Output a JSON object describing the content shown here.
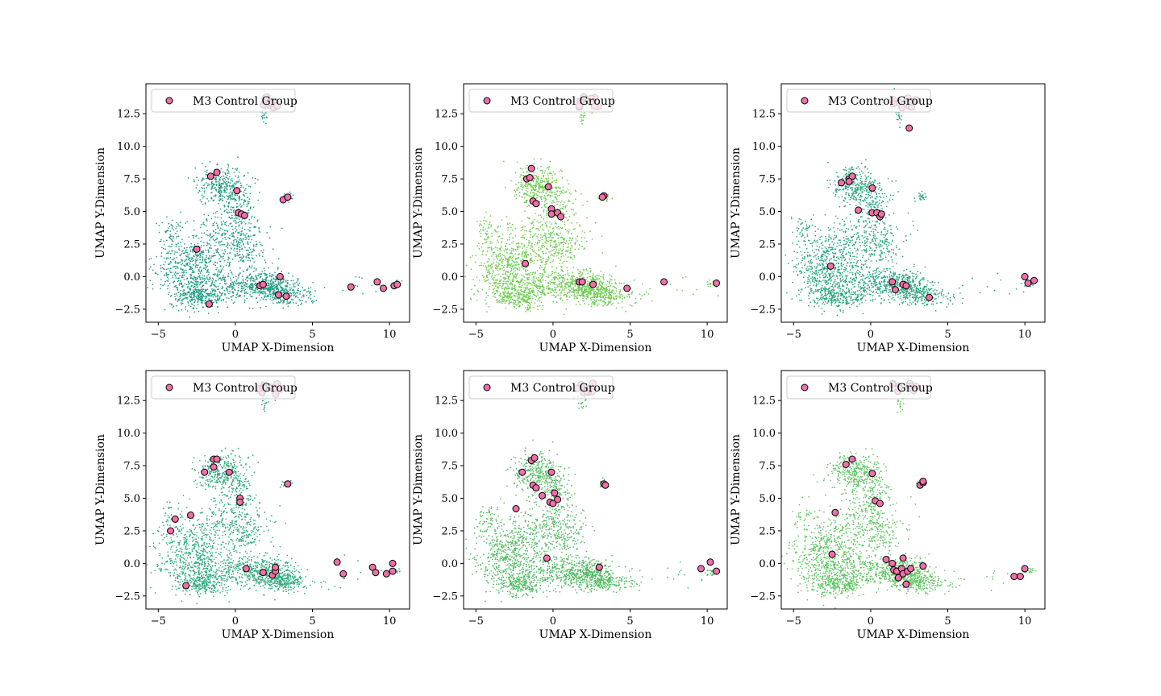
{
  "figure": {
    "colors": {
      "marker": "#f06fa8",
      "marker_edge": "#000000",
      "frame": "#000000",
      "legend_edge": "#cccccc"
    }
  },
  "chart_data": [
    {
      "type": "scatter",
      "xlabel": "UMAP X-Dimension",
      "ylabel": "UMAP Y-Dimension",
      "xlim": [
        -5.8,
        11.3
      ],
      "ylim": [
        -3.5,
        14.8
      ],
      "xticks": [
        -5,
        0,
        5,
        10
      ],
      "xtick_labels": [
        "−5",
        "0",
        "5",
        "10"
      ],
      "yticks": [
        -2.5,
        0.0,
        2.5,
        5.0,
        7.5,
        10.0,
        12.5
      ],
      "ytick_labels": [
        "−2.5",
        "0.0",
        "2.5",
        "5.0",
        "7.5",
        "10.0",
        "12.5"
      ],
      "legend": {
        "label": "M3 Control Group",
        "placement": "upper-left"
      },
      "background_color": "#1e9c83",
      "series": [
        {
          "name": "M3 Control Group",
          "color": "#f06fa8",
          "points": [
            [
              -1.6,
              7.7
            ],
            [
              -1.2,
              8.0
            ],
            [
              0.1,
              6.6
            ],
            [
              0.2,
              4.9
            ],
            [
              0.4,
              4.8
            ],
            [
              0.6,
              4.7
            ],
            [
              3.1,
              5.9
            ],
            [
              3.4,
              6.1
            ],
            [
              -2.5,
              2.1
            ],
            [
              -1.7,
              -2.1
            ],
            [
              1.6,
              -0.7
            ],
            [
              1.8,
              -0.6
            ],
            [
              2.9,
              0.0
            ],
            [
              2.8,
              -1.4
            ],
            [
              3.3,
              -1.5
            ],
            [
              7.5,
              -0.8
            ],
            [
              9.2,
              -0.4
            ],
            [
              9.6,
              -0.9
            ],
            [
              10.3,
              -0.7
            ],
            [
              10.5,
              -0.6
            ]
          ]
        }
      ]
    },
    {
      "type": "scatter",
      "xlabel": "UMAP X-Dimension",
      "ylabel": "UMAP Y-Dimension",
      "xlim": [
        -5.8,
        11.3
      ],
      "ylim": [
        -3.5,
        14.8
      ],
      "xticks": [
        -5,
        0,
        5,
        10
      ],
      "xtick_labels": [
        "−5",
        "0",
        "5",
        "10"
      ],
      "yticks": [
        -2.5,
        0.0,
        2.5,
        5.0,
        7.5,
        10.0,
        12.5
      ],
      "ytick_labels": [
        "−2.5",
        "0.0",
        "2.5",
        "5.0",
        "7.5",
        "10.0",
        "12.5"
      ],
      "legend": {
        "label": "M3 Control Group",
        "placement": "upper-left"
      },
      "background_color": "#6ccc4e",
      "series": [
        {
          "name": "M3 Control Group",
          "color": "#f06fa8",
          "points": [
            [
              -1.7,
              7.5
            ],
            [
              -1.5,
              7.6
            ],
            [
              -1.4,
              8.3
            ],
            [
              -0.3,
              6.9
            ],
            [
              -1.3,
              5.8
            ],
            [
              -1.1,
              5.6
            ],
            [
              -0.1,
              5.2
            ],
            [
              -0.1,
              4.8
            ],
            [
              0.3,
              4.9
            ],
            [
              0.5,
              4.6
            ],
            [
              3.3,
              6.2
            ],
            [
              3.2,
              6.1
            ],
            [
              -1.8,
              1.0
            ],
            [
              1.7,
              -0.4
            ],
            [
              1.9,
              -0.4
            ],
            [
              2.6,
              -0.6
            ],
            [
              4.8,
              -0.9
            ],
            [
              7.2,
              -0.4
            ],
            [
              10.6,
              -0.5
            ]
          ]
        }
      ]
    },
    {
      "type": "scatter",
      "xlabel": "UMAP X-Dimension",
      "ylabel": "UMAP Y-Dimension",
      "xlim": [
        -5.8,
        11.3
      ],
      "ylim": [
        -3.5,
        14.8
      ],
      "xticks": [
        -5,
        0,
        5,
        10
      ],
      "xtick_labels": [
        "−5",
        "0",
        "5",
        "10"
      ],
      "yticks": [
        -2.5,
        0.0,
        2.5,
        5.0,
        7.5,
        10.0,
        12.5
      ],
      "ytick_labels": [
        "−2.5",
        "0.0",
        "2.5",
        "5.0",
        "7.5",
        "10.0",
        "12.5"
      ],
      "legend": {
        "label": "M3 Control Group",
        "placement": "upper-left"
      },
      "background_color": "#27a47e",
      "series": [
        {
          "name": "M3 Control Group",
          "color": "#f06fa8",
          "points": [
            [
              2.5,
              11.4
            ],
            [
              -1.9,
              7.2
            ],
            [
              -1.4,
              7.5
            ],
            [
              -1.2,
              7.7
            ],
            [
              -1.4,
              7.3
            ],
            [
              0.1,
              6.8
            ],
            [
              -0.8,
              5.1
            ],
            [
              0.1,
              4.9
            ],
            [
              0.4,
              4.9
            ],
            [
              0.6,
              4.6
            ],
            [
              0.7,
              4.8
            ],
            [
              -2.6,
              0.8
            ],
            [
              1.4,
              -0.4
            ],
            [
              1.6,
              -1.0
            ],
            [
              2.1,
              -0.6
            ],
            [
              2.3,
              -0.7
            ],
            [
              3.8,
              -1.6
            ],
            [
              10.0,
              0.0
            ],
            [
              10.2,
              -0.5
            ],
            [
              10.6,
              -0.3
            ]
          ]
        }
      ]
    },
    {
      "type": "scatter",
      "xlabel": "UMAP X-Dimension",
      "ylabel": "UMAP Y-Dimension",
      "xlim": [
        -5.8,
        11.3
      ],
      "ylim": [
        -3.5,
        14.8
      ],
      "xticks": [
        -5,
        0,
        5,
        10
      ],
      "xtick_labels": [
        "−5",
        "0",
        "5",
        "10"
      ],
      "yticks": [
        -2.5,
        0.0,
        2.5,
        5.0,
        7.5,
        10.0,
        12.5
      ],
      "ytick_labels": [
        "−2.5",
        "0.0",
        "2.5",
        "5.0",
        "7.5",
        "10.0",
        "12.5"
      ],
      "legend": {
        "label": "M3 Control Group",
        "placement": "upper-left"
      },
      "background_color": "#2dab7d",
      "series": [
        {
          "name": "M3 Control Group",
          "color": "#f06fa8",
          "points": [
            [
              -1.4,
              8.0
            ],
            [
              -1.2,
              8.0
            ],
            [
              -2.0,
              7.0
            ],
            [
              -1.4,
              7.4
            ],
            [
              -0.4,
              7.0
            ],
            [
              0.3,
              5.0
            ],
            [
              0.3,
              4.7
            ],
            [
              3.4,
              6.1
            ],
            [
              -3.9,
              3.4
            ],
            [
              -2.9,
              3.7
            ],
            [
              -4.2,
              2.5
            ],
            [
              -3.2,
              -1.7
            ],
            [
              0.7,
              -0.4
            ],
            [
              1.8,
              -0.7
            ],
            [
              2.4,
              -0.9
            ],
            [
              2.6,
              -0.6
            ],
            [
              2.6,
              -0.3
            ],
            [
              6.6,
              0.1
            ],
            [
              7.0,
              -0.8
            ],
            [
              8.9,
              -0.3
            ],
            [
              9.1,
              -0.7
            ],
            [
              9.8,
              -0.8
            ],
            [
              10.2,
              0.0
            ],
            [
              10.2,
              -0.6
            ]
          ]
        }
      ]
    },
    {
      "type": "scatter",
      "xlabel": "UMAP X-Dimension",
      "ylabel": "UMAP Y-Dimension",
      "xlim": [
        -5.8,
        11.3
      ],
      "ylim": [
        -3.5,
        14.8
      ],
      "xticks": [
        -5,
        0,
        5,
        10
      ],
      "xtick_labels": [
        "−5",
        "0",
        "5",
        "10"
      ],
      "yticks": [
        -2.5,
        0.0,
        2.5,
        5.0,
        7.5,
        10.0,
        12.5
      ],
      "ytick_labels": [
        "−2.5",
        "0.0",
        "2.5",
        "5.0",
        "7.5",
        "10.0",
        "12.5"
      ],
      "legend": {
        "label": "M3 Control Group",
        "placement": "upper-left"
      },
      "background_color": "#4fbb62",
      "series": [
        {
          "name": "M3 Control Group",
          "color": "#f06fa8",
          "points": [
            [
              -1.4,
              7.9
            ],
            [
              -1.2,
              8.1
            ],
            [
              -2.0,
              7.0
            ],
            [
              -0.1,
              7.0
            ],
            [
              -1.3,
              6.0
            ],
            [
              -1.1,
              5.8
            ],
            [
              -0.7,
              5.2
            ],
            [
              -0.2,
              4.7
            ],
            [
              0.1,
              5.4
            ],
            [
              0.0,
              4.6
            ],
            [
              0.3,
              4.9
            ],
            [
              3.3,
              6.1
            ],
            [
              3.4,
              6.0
            ],
            [
              -2.4,
              4.2
            ],
            [
              -0.4,
              0.4
            ],
            [
              3.0,
              -0.3
            ],
            [
              9.6,
              -0.4
            ],
            [
              10.2,
              0.1
            ],
            [
              10.6,
              -0.6
            ]
          ]
        }
      ]
    },
    {
      "type": "scatter",
      "xlabel": "UMAP X-Dimension",
      "ylabel": "UMAP Y-Dimension",
      "xlim": [
        -5.8,
        11.3
      ],
      "ylim": [
        -3.5,
        14.8
      ],
      "xticks": [
        -5,
        0,
        5,
        10
      ],
      "xtick_labels": [
        "−5",
        "0",
        "5",
        "10"
      ],
      "yticks": [
        -2.5,
        0.0,
        2.5,
        5.0,
        7.5,
        10.0,
        12.5
      ],
      "ytick_labels": [
        "−2.5",
        "0.0",
        "2.5",
        "5.0",
        "7.5",
        "10.0",
        "12.5"
      ],
      "legend": {
        "label": "M3 Control Group",
        "placement": "upper-left"
      },
      "background_color": "#5cc55e",
      "series": [
        {
          "name": "M3 Control Group",
          "color": "#f06fa8",
          "points": [
            [
              -1.6,
              7.6
            ],
            [
              -1.2,
              8.0
            ],
            [
              0.1,
              6.9
            ],
            [
              0.3,
              4.8
            ],
            [
              0.6,
              4.6
            ],
            [
              3.2,
              6.0
            ],
            [
              3.4,
              6.2
            ],
            [
              3.4,
              6.3
            ],
            [
              -2.3,
              3.9
            ],
            [
              -2.5,
              0.7
            ],
            [
              1.0,
              0.3
            ],
            [
              1.4,
              0.0
            ],
            [
              2.1,
              0.4
            ],
            [
              1.5,
              -0.5
            ],
            [
              1.7,
              -0.6
            ],
            [
              1.8,
              -1.1
            ],
            [
              2.0,
              -0.4
            ],
            [
              2.1,
              -0.8
            ],
            [
              2.4,
              -0.6
            ],
            [
              2.6,
              -0.4
            ],
            [
              2.3,
              -1.6
            ],
            [
              3.4,
              -0.2
            ],
            [
              9.3,
              -1.0
            ],
            [
              9.7,
              -1.0
            ],
            [
              10.0,
              -0.4
            ]
          ]
        }
      ]
    }
  ]
}
